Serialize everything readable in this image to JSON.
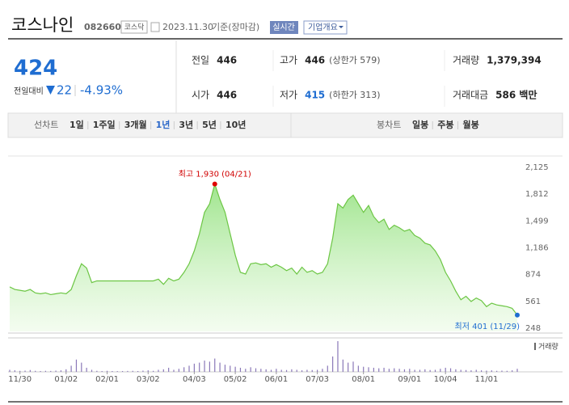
{
  "header": {
    "name": "코스나인",
    "code": "082660",
    "market": "코스닥",
    "date": "2023.11.30",
    "basis": "기준(장마감)",
    "realtime": "실시간",
    "company": "기업개요"
  },
  "price": {
    "current": "424",
    "change_label": "전일대비",
    "change": "22",
    "change_pct": "-4.93%"
  },
  "info": [
    {
      "label": "전일",
      "value": "446"
    },
    {
      "label": "고가",
      "value": "446",
      "sub": "(상한가 579)"
    },
    {
      "label": "거래량",
      "value": "1,379,394"
    },
    {
      "label": "시가",
      "value": "446"
    },
    {
      "label": "저가",
      "value": "415",
      "sub": "(하한가 313)"
    },
    {
      "label": "거래대금",
      "value": "586 백만"
    }
  ],
  "tabs": {
    "line_label": "선차트",
    "line": [
      "1일",
      "1주일",
      "3개월",
      "1년",
      "3년",
      "5년",
      "10년"
    ],
    "selected": 3,
    "candle_label": "봉차트",
    "candle": [
      "일봉",
      "주봉",
      "월봉"
    ]
  },
  "chart_data": {
    "type": "line",
    "color": "#6cc644",
    "categories": [
      null,
      null,
      "11/30",
      null,
      null,
      null,
      null,
      null,
      null,
      null,
      null,
      "01/02",
      null,
      null,
      null,
      null,
      null,
      null,
      null,
      "02/01",
      null,
      null,
      null,
      null,
      null,
      null,
      null,
      "03/02",
      null,
      null,
      null,
      null,
      null,
      null,
      null,
      null,
      "04/03",
      null,
      null,
      null,
      null,
      null,
      null,
      null,
      "05/02",
      null,
      null,
      null,
      null,
      null,
      null,
      null,
      "06/01",
      null,
      null,
      null,
      null,
      null,
      null,
      null,
      "07/03",
      null,
      null,
      null,
      null,
      null,
      null,
      null,
      null,
      "08/01",
      null,
      null,
      null,
      null,
      null,
      null,
      null,
      null,
      "09/01",
      null,
      null,
      null,
      null,
      null,
      null,
      "10/04",
      null,
      null,
      null,
      null,
      null,
      null,
      null,
      "11/01",
      null,
      null,
      null,
      null,
      null,
      null
    ],
    "values": [
      730,
      700,
      690,
      680,
      700,
      660,
      650,
      660,
      640,
      650,
      660,
      650,
      700,
      860,
      1000,
      950,
      780,
      800,
      800,
      800,
      800,
      800,
      800,
      800,
      800,
      800,
      800,
      800,
      800,
      820,
      760,
      830,
      800,
      820,
      900,
      1000,
      1150,
      1350,
      1600,
      1700,
      1930,
      1750,
      1600,
      1350,
      1100,
      900,
      880,
      1000,
      1010,
      990,
      1000,
      960,
      990,
      960,
      920,
      950,
      880,
      960,
      900,
      920,
      880,
      900,
      1000,
      1300,
      1700,
      1650,
      1750,
      1800,
      1700,
      1600,
      1680,
      1550,
      1480,
      1520,
      1400,
      1450,
      1420,
      1380,
      1400,
      1330,
      1300,
      1240,
      1220,
      1150,
      1050,
      900,
      800,
      680,
      580,
      620,
      560,
      600,
      570,
      500,
      540,
      520,
      510,
      500,
      480,
      401
    ],
    "ylim": [
      248,
      2125
    ],
    "yticks": [
      {
        "value": 2125,
        "label": "2,125"
      },
      {
        "value": 1812,
        "label": "1,812"
      },
      {
        "value": 1499,
        "label": "1,499"
      },
      {
        "value": 1186,
        "label": "1,186"
      },
      874,
      561,
      248
    ],
    "annotations": {
      "max": "최고 1,930 (04/21)",
      "min": "최저 401 (11/29)"
    },
    "volume": {
      "name": "거래량",
      "color": "#8a78b8",
      "values": [
        20,
        15,
        10,
        12,
        18,
        10,
        8,
        10,
        9,
        12,
        15,
        25,
        60,
        120,
        90,
        40,
        20,
        10,
        8,
        10,
        8,
        7,
        8,
        9,
        10,
        8,
        12,
        15,
        10,
        20,
        25,
        40,
        20,
        30,
        45,
        60,
        80,
        90,
        110,
        100,
        130,
        90,
        70,
        60,
        50,
        40,
        30,
        45,
        35,
        30,
        25,
        20,
        30,
        20,
        18,
        25,
        20,
        15,
        20,
        18,
        20,
        30,
        60,
        150,
        300,
        120,
        90,
        100,
        60,
        50,
        45,
        40,
        35,
        40,
        30,
        35,
        30,
        25,
        30,
        20,
        20,
        25,
        18,
        20,
        30,
        40,
        35,
        25,
        20,
        18,
        15,
        20,
        15,
        12,
        15,
        10,
        12,
        10,
        15,
        30
      ]
    }
  }
}
